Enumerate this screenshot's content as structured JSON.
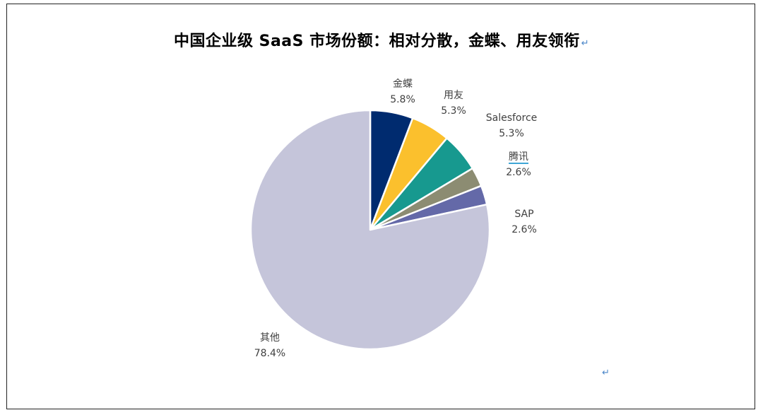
{
  "title": "中国企业级 SaaS 市场份额：相对分散，金蝶、用友领衔",
  "title_mark": "↵",
  "end_mark": "↵",
  "chart_data": {
    "type": "pie",
    "title": "中国企业级 SaaS 市场份额：相对分散，金蝶、用友领衔",
    "start_angle_deg": 0,
    "direction": "clockwise",
    "slices": [
      {
        "label": "金蝶",
        "value": 5.8,
        "display": "5.8%",
        "color": "#002b6f"
      },
      {
        "label": "用友",
        "value": 5.3,
        "display": "5.3%",
        "color": "#fbc02d"
      },
      {
        "label": "Salesforce",
        "value": 5.3,
        "display": "5.3%",
        "color": "#17998f"
      },
      {
        "label": "腾讯",
        "value": 2.6,
        "display": "2.6%",
        "color": "#8c8c72"
      },
      {
        "label": "SAP",
        "value": 2.6,
        "display": "2.6%",
        "color": "#6469a8"
      },
      {
        "label": "其他",
        "value": 78.4,
        "display": "78.4%",
        "color": "#c5c5da"
      }
    ]
  }
}
